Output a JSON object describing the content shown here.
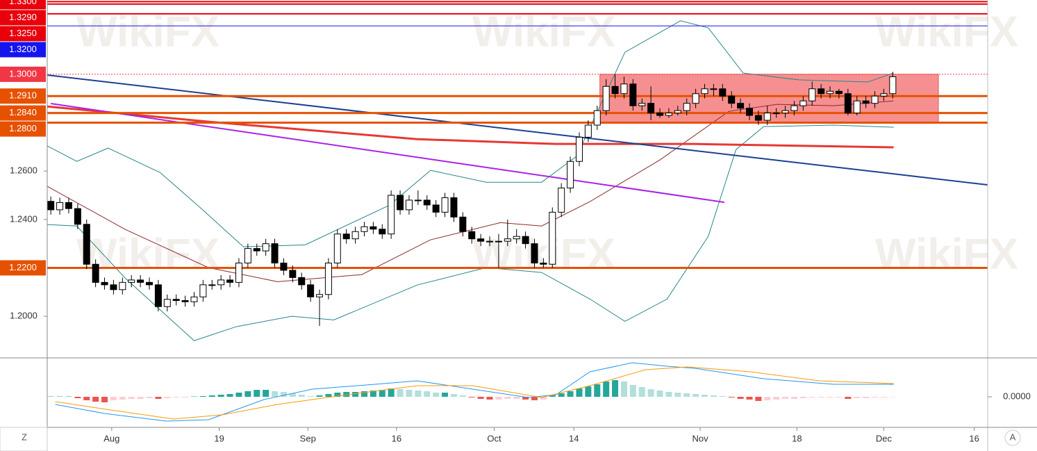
{
  "watermark": "WikiFX",
  "ui": {
    "left_button": "Z",
    "right_button": "A"
  },
  "chart_data": [
    {
      "type": "candlestick",
      "open": [
        1.2475,
        1.244,
        1.247,
        1.2445,
        1.238,
        1.2215,
        1.214,
        1.213,
        1.211,
        1.214,
        1.215,
        1.214,
        1.213,
        1.204,
        1.207,
        1.2065,
        1.206,
        1.208,
        1.213,
        1.213,
        1.215,
        1.214,
        1.222,
        1.228,
        1.227,
        1.23,
        1.222,
        1.219,
        1.216,
        1.213,
        1.208,
        1.209,
        1.222,
        1.234,
        1.232,
        1.235,
        1.237,
        1.236,
        1.234,
        1.25,
        1.244,
        1.248,
        1.248,
        1.246,
        1.243,
        1.249,
        1.241,
        1.235,
        1.232,
        1.231,
        1.231,
        1.231,
        1.232,
        1.233,
        1.23,
        1.222,
        1.2215,
        1.243,
        1.253,
        1.264,
        1.274,
        1.279,
        1.285,
        1.295,
        1.292,
        1.296,
        1.287,
        1.288,
        1.284,
        1.283,
        1.284,
        1.285,
        1.288,
        1.292,
        1.294,
        1.294,
        1.291,
        1.288,
        1.286,
        1.283,
        1.281,
        1.284,
        1.284,
        1.285,
        1.287,
        1.289,
        1.294,
        1.292,
        1.293,
        1.292,
        1.284,
        1.289,
        1.288,
        1.291,
        1.292
      ],
      "high": [
        1.2495,
        1.249,
        1.249,
        1.2465,
        1.24,
        1.2235,
        1.216,
        1.215,
        1.216,
        1.217,
        1.217,
        1.216,
        1.215,
        1.209,
        1.209,
        1.2085,
        1.21,
        1.215,
        1.215,
        1.217,
        1.217,
        1.224,
        1.23,
        1.23,
        1.232,
        1.232,
        1.224,
        1.221,
        1.218,
        1.215,
        1.211,
        1.224,
        1.236,
        1.236,
        1.237,
        1.239,
        1.239,
        1.238,
        1.252,
        1.252,
        1.25,
        1.252,
        1.25,
        1.248,
        1.251,
        1.251,
        1.243,
        1.237,
        1.234,
        1.233,
        1.234,
        1.24,
        1.236,
        1.235,
        1.232,
        1.224,
        1.245,
        1.255,
        1.266,
        1.276,
        1.281,
        1.287,
        1.298,
        1.3,
        1.299,
        1.298,
        1.29,
        1.295,
        1.286,
        1.286,
        1.287,
        1.29,
        1.294,
        1.296,
        1.296,
        1.296,
        1.293,
        1.29,
        1.288,
        1.285,
        1.287,
        1.286,
        1.287,
        1.289,
        1.291,
        1.297,
        1.296,
        1.295,
        1.294,
        1.294,
        1.291,
        1.291,
        1.293,
        1.294,
        1.301
      ],
      "low": [
        1.242,
        1.242,
        1.2425,
        1.236,
        1.2195,
        1.212,
        1.211,
        1.209,
        1.209,
        1.212,
        1.212,
        1.211,
        1.202,
        1.202,
        1.2045,
        1.204,
        1.204,
        1.206,
        1.211,
        1.211,
        1.212,
        1.212,
        1.22,
        1.225,
        1.225,
        1.22,
        1.217,
        1.214,
        1.211,
        1.206,
        1.196,
        1.207,
        1.22,
        1.23,
        1.23,
        1.233,
        1.234,
        1.232,
        1.232,
        1.242,
        1.242,
        1.246,
        1.244,
        1.241,
        1.241,
        1.239,
        1.233,
        1.23,
        1.229,
        1.229,
        1.22,
        1.229,
        1.23,
        1.228,
        1.22,
        1.22,
        1.22,
        1.241,
        1.251,
        1.262,
        1.272,
        1.277,
        1.283,
        1.29,
        1.29,
        1.285,
        1.285,
        1.281,
        1.282,
        1.282,
        1.283,
        1.283,
        1.286,
        1.29,
        1.291,
        1.289,
        1.286,
        1.284,
        1.281,
        1.279,
        1.279,
        1.282,
        1.282,
        1.283,
        1.285,
        1.287,
        1.29,
        1.29,
        1.29,
        1.283,
        1.283,
        1.286,
        1.286,
        1.289,
        1.29
      ],
      "close": [
        1.244,
        1.247,
        1.2445,
        1.238,
        1.2215,
        1.214,
        1.213,
        1.211,
        1.214,
        1.215,
        1.214,
        1.213,
        1.204,
        1.207,
        1.2065,
        1.206,
        1.208,
        1.213,
        1.213,
        1.215,
        1.214,
        1.222,
        1.228,
        1.227,
        1.23,
        1.222,
        1.219,
        1.216,
        1.213,
        1.208,
        1.209,
        1.222,
        1.234,
        1.232,
        1.235,
        1.237,
        1.236,
        1.234,
        1.25,
        1.244,
        1.248,
        1.248,
        1.246,
        1.243,
        1.249,
        1.241,
        1.235,
        1.232,
        1.231,
        1.231,
        1.231,
        1.232,
        1.233,
        1.23,
        1.222,
        1.2215,
        1.243,
        1.253,
        1.264,
        1.274,
        1.279,
        1.285,
        1.295,
        1.292,
        1.296,
        1.287,
        1.288,
        1.284,
        1.283,
        1.284,
        1.285,
        1.288,
        1.292,
        1.294,
        1.294,
        1.291,
        1.288,
        1.286,
        1.283,
        1.281,
        1.284,
        1.284,
        1.285,
        1.287,
        1.289,
        1.294,
        1.292,
        1.293,
        1.292,
        1.284,
        1.289,
        1.288,
        1.291,
        1.292,
        1.299
      ],
      "up_color": "#ffffff",
      "down_color": "#000000",
      "xlim": [
        -0.4,
        104.6
      ],
      "xticks": [
        {
          "value": 6.8,
          "label": "Aug"
        },
        {
          "value": 18.8,
          "label": "19"
        },
        {
          "value": 28.7,
          "label": "Sep"
        },
        {
          "value": 38.6,
          "label": "16"
        },
        {
          "value": 49.5,
          "label": "Oct"
        },
        {
          "value": 58.4,
          "label": "14"
        },
        {
          "value": 72.5,
          "label": "Nov"
        },
        {
          "value": 83.3,
          "label": "18"
        },
        {
          "value": 93,
          "label": "Dec"
        },
        {
          "value": 103.1,
          "label": "16"
        }
      ],
      "ylim": [
        1.1828,
        1.3307
      ],
      "yticks": [
        {
          "value": 1.2,
          "label": "1.2000"
        },
        {
          "value": 1.24,
          "label": "1.2400"
        },
        {
          "value": 1.26,
          "label": "1.2600"
        }
      ],
      "zone": {
        "x": [
          61.3,
          99.1
        ],
        "y": [
          1.28,
          1.3
        ],
        "color": "#f47c7c"
      },
      "levels": [
        {
          "value": 1.33,
          "label": "1.3300",
          "color": "#e8000b",
          "width": 2
        },
        {
          "value": 1.329,
          "label": "1.3290",
          "color": "#e8000b",
          "width": 2
        },
        {
          "value": 1.325,
          "label": "1.3250",
          "color": "#e8000b",
          "width": 2
        },
        {
          "value": 1.32,
          "label": "1.3200",
          "color": "#1515f0",
          "width": 1
        },
        {
          "value": 1.3,
          "label": "1.3000",
          "color": "#f23645",
          "width": 1,
          "dashed": true
        },
        {
          "value": 1.291,
          "label": "1.2910",
          "color": "#e65100",
          "width": 3
        },
        {
          "value": 1.284,
          "label": "1.2840",
          "color": "#e65100",
          "width": 3
        },
        {
          "value": 1.28,
          "label": "1.2800",
          "color": "#e65100",
          "width": 3
        },
        {
          "value": 1.22,
          "label": "1.2200",
          "color": "#e65100",
          "width": 3
        }
      ],
      "overlays": [
        {
          "color": "#26868a",
          "width": 1,
          "x": [
            -0.4,
            2.9,
            6.4,
            12.2,
            16.8,
            21.5,
            28.4,
            37.8,
            42.4,
            48.6,
            54.8,
            58.7,
            64.1,
            70.3,
            73.4,
            77.3,
            83.5,
            91.2,
            94.1
          ],
          "values": [
            1.2704,
            1.264,
            1.2695,
            1.2594,
            1.2445,
            1.2287,
            1.2295,
            1.2459,
            1.2603,
            1.2554,
            1.2554,
            1.2661,
            1.3091,
            1.3221,
            1.3192,
            1.3005,
            1.2977,
            1.2968,
            1.3005
          ]
        },
        {
          "color": "#26868a",
          "width": 1,
          "x": [
            -0.4,
            2.9,
            8.3,
            16,
            20.7,
            26.9,
            31.6,
            40.9,
            48.6,
            54.8,
            60.2,
            64.1,
            68.8,
            73.4,
            76.5,
            79.6,
            87.4,
            94.1
          ],
          "values": [
            1.2379,
            1.2373,
            1.2158,
            1.1899,
            1.1957,
            1.2,
            1.1985,
            1.2129,
            1.2201,
            1.2181,
            1.2071,
            1.1979,
            1.2071,
            1.233,
            1.2689,
            1.2784,
            1.279,
            1.2781
          ]
        },
        {
          "color": "#8b2a2a",
          "width": 1,
          "x": [
            -0.4,
            8.3,
            17.6,
            25.3,
            34.7,
            42.4,
            50.2,
            54.8,
            60.2,
            68,
            75.7,
            81.1,
            87.4,
            94.1
          ],
          "values": [
            1.2537,
            1.2359,
            1.2201,
            1.2143,
            1.2172,
            1.2316,
            1.2387,
            1.2373,
            1.2474,
            1.2646,
            1.2847,
            1.2876,
            1.287,
            1.289
          ]
        },
        {
          "color": "#e53935",
          "width": 3,
          "x": [
            -0.4,
            17.6,
            40.9,
            56.4,
            71.9,
            94.1
          ],
          "values": [
            1.2867,
            1.2804,
            1.2732,
            1.2712,
            1.2712,
            1.2698
          ]
        },
        {
          "color": "#1c3f94",
          "width": 2,
          "x": [
            -0.4,
            104.6
          ],
          "values": [
            1.2997,
            1.2543
          ]
        },
        {
          "color": "#aa22e6",
          "width": 2,
          "x": [
            0,
            75.2
          ],
          "values": [
            1.2879,
            1.2471
          ]
        }
      ]
    },
    {
      "type": "bar",
      "values": [
        0.0001,
        0.0001,
        0.0001,
        -0.0004,
        -0.001,
        -0.0014,
        -0.0016,
        -0.001,
        -0.0008,
        -0.0006,
        -0.0006,
        -0.0004,
        -0.0006,
        -0.0004,
        -0.0002,
        -0.0002,
        0.0001,
        0.0002,
        0.0004,
        0.0006,
        0.0008,
        0.0012,
        0.0016,
        0.002,
        0.002,
        0.0016,
        0.0014,
        0.001,
        0.0006,
        0.0002,
        0.0004,
        0.0008,
        0.0012,
        0.0014,
        0.0014,
        0.0016,
        0.0018,
        0.002,
        0.0024,
        0.0022,
        0.002,
        0.0018,
        0.0016,
        0.0012,
        0.0012,
        0.0008,
        0.0004,
        -0.0002,
        -0.0006,
        -0.0008,
        -0.0008,
        -0.0006,
        -0.0006,
        -0.0008,
        -0.001,
        -0.0008,
        0.0004,
        0.001,
        0.0016,
        0.0024,
        0.003,
        0.0036,
        0.0044,
        0.0048,
        0.0044,
        0.0034,
        0.0028,
        0.0022,
        0.0018,
        0.0014,
        0.0012,
        0.001,
        0.0008,
        0.0006,
        0.0004,
        0.0002,
        -0.0002,
        -0.0006,
        -0.0008,
        -0.0012,
        -0.001,
        -0.0008,
        -0.0006,
        -0.0006,
        -0.0004,
        -0.0002,
        -0.0002,
        -0.0002,
        -0.0002,
        -0.0006,
        -0.0004,
        -0.0004,
        -0.0002,
        -0.0002,
        -0.0001
      ],
      "colors": {
        "rising": "#26a69a",
        "falling": "#b2dfdb",
        "negative_falling": "#ef5350",
        "negative_rising": "#ffcdd2"
      },
      "ylim": [
        -0.0088,
        0.0106
      ],
      "yticks": [
        {
          "value": 0,
          "label": "0.0000"
        }
      ],
      "overlays": [
        {
          "color": "#2196f3",
          "width": 1,
          "x": [
            0.5,
            6,
            12.9,
            17.6,
            23.8,
            29.2,
            36.2,
            40.9,
            47.1,
            53.3,
            56.4,
            60.2,
            64.9,
            68.8,
            71.9,
            79.6,
            87.4,
            94.1
          ],
          "values": [
            -0.0022,
            -0.0048,
            -0.007,
            -0.0066,
            -0.0008,
            0.0022,
            0.0036,
            0.0046,
            0.0022,
            -0.0002,
            0.0006,
            0.0072,
            0.0098,
            0.0088,
            0.0082,
            0.0052,
            0.0036,
            0.0036
          ]
        },
        {
          "color": "#ff9800",
          "width": 1,
          "x": [
            0.5,
            6.7,
            13.7,
            19.1,
            25.3,
            33.1,
            40.9,
            47.1,
            54.8,
            60.2,
            66.4,
            71.1,
            78.1,
            85.8,
            94.1
          ],
          "values": [
            -0.0014,
            -0.0038,
            -0.0064,
            -0.0052,
            -0.0022,
            0.0006,
            0.0032,
            0.0032,
            -0.0002,
            0.0032,
            0.0078,
            0.0086,
            0.0072,
            0.0046,
            0.0038
          ]
        }
      ]
    }
  ]
}
